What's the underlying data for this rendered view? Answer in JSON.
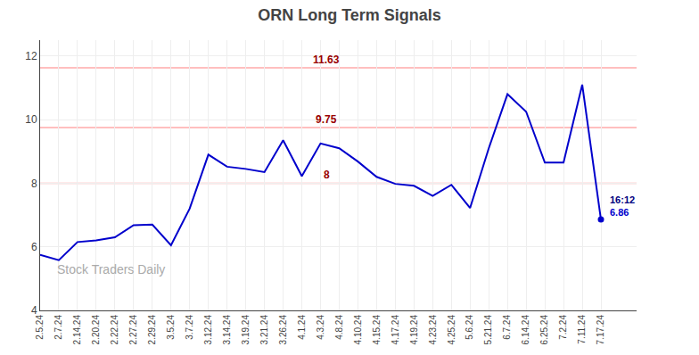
{
  "chart_data": {
    "type": "line",
    "title": "ORN Long Term Signals",
    "categories": [
      "2.5.24",
      "2.7.24",
      "2.14.24",
      "2.20.24",
      "2.22.24",
      "2.27.24",
      "2.29.24",
      "3.5.24",
      "3.7.24",
      "3.12.24",
      "3.14.24",
      "3.19.24",
      "3.21.24",
      "3.26.24",
      "4.1.24",
      "4.3.24",
      "4.8.24",
      "4.10.24",
      "4.15.24",
      "4.17.24",
      "4.19.24",
      "4.23.24",
      "4.25.24",
      "5.6.24",
      "5.21.24",
      "6.7.24",
      "6.14.24",
      "6.25.24",
      "7.2.24",
      "7.11.24",
      "7.17.24"
    ],
    "values": [
      5.75,
      5.58,
      6.15,
      6.2,
      6.3,
      6.68,
      6.7,
      6.05,
      7.2,
      8.9,
      8.52,
      8.45,
      8.35,
      9.35,
      8.22,
      9.25,
      9.1,
      8.68,
      8.2,
      7.98,
      7.92,
      7.6,
      7.95,
      7.22,
      9.1,
      10.8,
      10.25,
      8.65,
      8.65,
      11.1,
      6.86
    ],
    "color": "#0000cc",
    "ylim": [
      4,
      12.5
    ],
    "yticks": [
      4,
      6,
      8,
      10,
      12
    ],
    "grid": true,
    "hlines": {
      "values": [
        11.63,
        9.75,
        8
      ],
      "color": "#ffaaaa",
      "label_color": "#990000"
    },
    "annotations": [
      "16:12"
    ],
    "annotation_color": "#000080",
    "watermark": "Stock Traders Daily",
    "watermark_color": "#aaaaaa"
  }
}
